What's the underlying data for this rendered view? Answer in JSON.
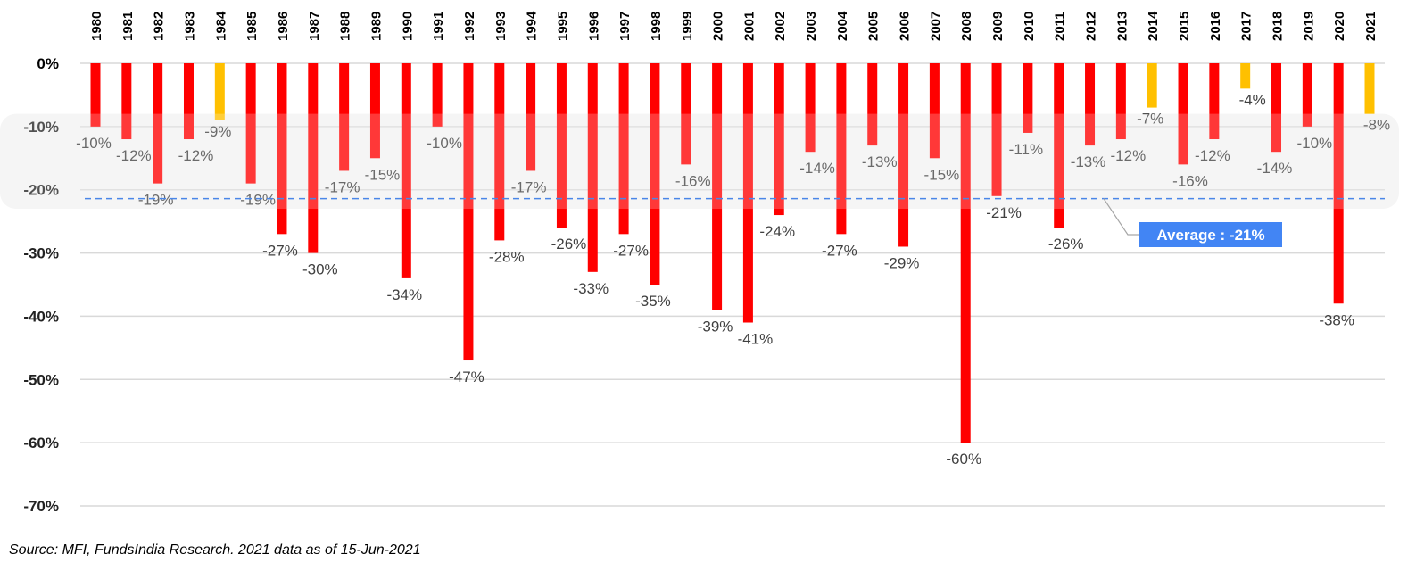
{
  "chart_data": {
    "type": "bar",
    "title": "",
    "xlabel": "",
    "ylabel": "",
    "ylim": [
      -70,
      0
    ],
    "yticks": [
      "0%",
      "-10%",
      "-20%",
      "-30%",
      "-40%",
      "-50%",
      "-60%",
      "-70%"
    ],
    "ytick_values": [
      0,
      -10,
      -20,
      -30,
      -40,
      -50,
      -60,
      -70
    ],
    "grid": true,
    "categories": [
      "1980",
      "1981",
      "1982",
      "1983",
      "1984",
      "1985",
      "1986",
      "1987",
      "1988",
      "1989",
      "1990",
      "1991",
      "1992",
      "1993",
      "1994",
      "1995",
      "1996",
      "1997",
      "1998",
      "1999",
      "2000",
      "2001",
      "2002",
      "2003",
      "2004",
      "2005",
      "2006",
      "2007",
      "2008",
      "2009",
      "2010",
      "2011",
      "2012",
      "2013",
      "2014",
      "2015",
      "2016",
      "2017",
      "2018",
      "2019",
      "2020",
      "2021"
    ],
    "values": [
      -10,
      -12,
      -19,
      -12,
      -9,
      -19,
      -27,
      -30,
      -17,
      -15,
      -34,
      -10,
      -47,
      -28,
      -17,
      -26,
      -33,
      -27,
      -35,
      -16,
      -39,
      -41,
      -24,
      -14,
      -27,
      -13,
      -29,
      -15,
      -60,
      -21,
      -11,
      -26,
      -13,
      -12,
      -7,
      -16,
      -12,
      -4,
      -14,
      -10,
      -38,
      -8
    ],
    "data_labels": [
      "-10%",
      "-12%",
      "-19%",
      "-12%",
      "-9%",
      "-19%",
      "-27%",
      "-30%",
      "-17%",
      "-15%",
      "-34%",
      "-10%",
      "-47%",
      "-28%",
      "-17%",
      "-26%",
      "-33%",
      "-27%",
      "-35%",
      "-16%",
      "-39%",
      "-41%",
      "-24%",
      "-14%",
      "-27%",
      "-13%",
      "-29%",
      "-15%",
      "-60%",
      "-21%",
      "-11%",
      "-26%",
      "-13%",
      "-12%",
      "-7%",
      "-16%",
      "-12%",
      "-4%",
      "-14%",
      "-10%",
      "-38%",
      "-8%"
    ],
    "highlight_years": [
      "1984",
      "2014",
      "2017",
      "2021"
    ],
    "average": -21.4,
    "average_label": "Average : -21%",
    "band_range": [
      -8,
      -23
    ],
    "colors": {
      "bar": "#ff0000",
      "highlight": "#ffc000",
      "average_line": "#4a86e8",
      "average_box": "#4285f4",
      "band": "#f3f3f3"
    }
  },
  "source_note": "Source: MFI, FundsIndia Research. 2021 data as of 15-Jun-2021"
}
